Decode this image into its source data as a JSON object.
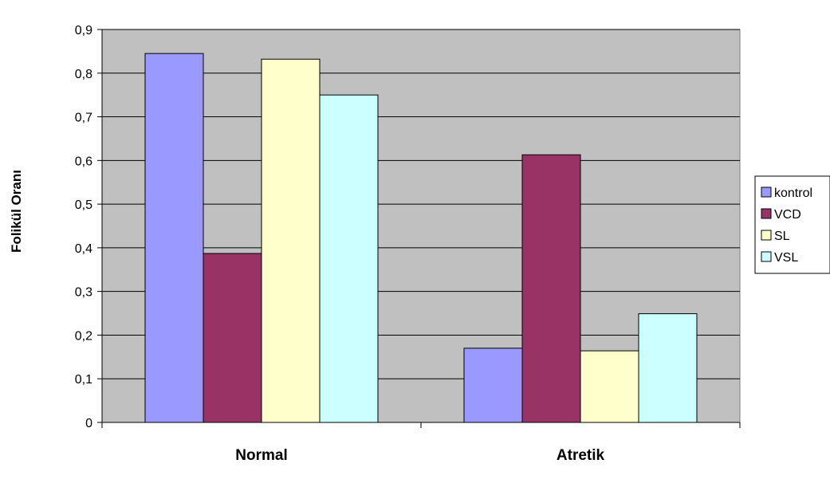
{
  "chart_data": {
    "type": "bar",
    "title": "",
    "xlabel": "",
    "ylabel": "Folikül Oranı",
    "categories": [
      "Normal",
      "Atretik"
    ],
    "series": [
      {
        "name": "kontrol",
        "color": "#9999ff",
        "values": [
          0.845,
          0.17
        ]
      },
      {
        "name": "VCD",
        "color": "#993366",
        "values": [
          0.387,
          0.613
        ]
      },
      {
        "name": "SL",
        "color": "#ffffcc",
        "values": [
          0.832,
          0.164
        ]
      },
      {
        "name": "VSL",
        "color": "#ccffff",
        "values": [
          0.75,
          0.249
        ]
      }
    ],
    "ylim": [
      0,
      0.9
    ],
    "yticks": [
      "0",
      "0,1",
      "0,2",
      "0,3",
      "0,4",
      "0,5",
      "0,6",
      "0,7",
      "0,8",
      "0,9"
    ],
    "grid": true,
    "legend_position": "right",
    "plot_background": "#c0c0c0"
  }
}
